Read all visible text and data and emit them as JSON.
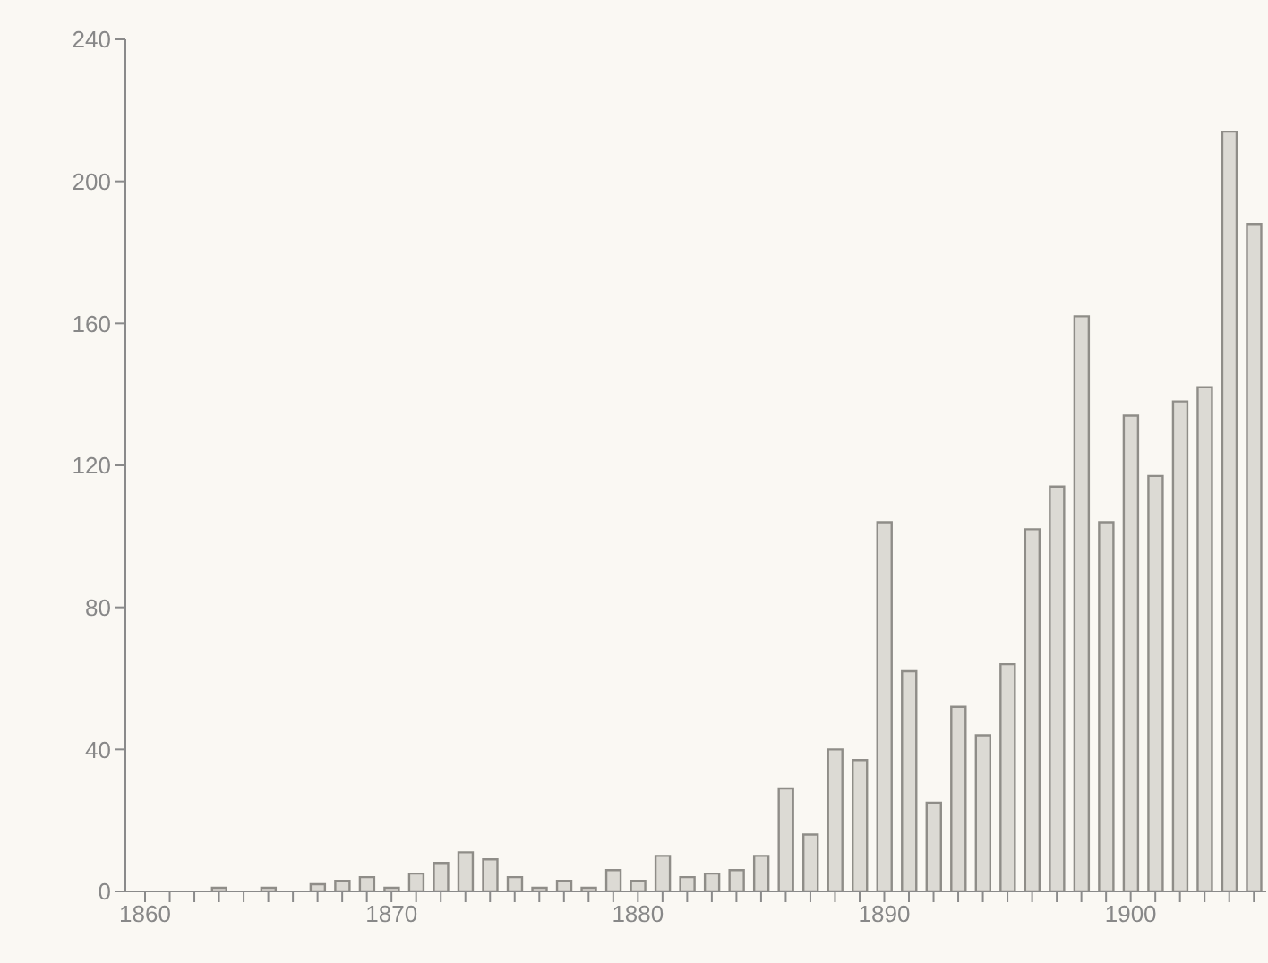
{
  "chart_data": {
    "type": "bar",
    "x": [
      1860,
      1861,
      1862,
      1863,
      1864,
      1865,
      1866,
      1867,
      1868,
      1869,
      1870,
      1871,
      1872,
      1873,
      1874,
      1875,
      1876,
      1877,
      1878,
      1879,
      1880,
      1881,
      1882,
      1883,
      1884,
      1885,
      1886,
      1887,
      1888,
      1889,
      1890,
      1891,
      1892,
      1893,
      1894,
      1895,
      1896,
      1897,
      1898,
      1899,
      1900,
      1901,
      1902,
      1903,
      1904,
      1905
    ],
    "values": [
      0,
      0,
      0,
      1,
      0,
      1,
      0,
      2,
      3,
      4,
      1,
      5,
      8,
      11,
      9,
      4,
      1,
      3,
      1,
      6,
      3,
      10,
      4,
      5,
      6,
      10,
      29,
      16,
      40,
      37,
      104,
      62,
      25,
      52,
      44,
      64,
      102,
      114,
      162,
      104,
      134,
      117,
      138,
      142,
      214,
      188
    ],
    "color": "#dcdad4",
    "xlim": [
      1859.2,
      1905.5
    ],
    "xticks": [
      1860,
      {
        "value": 1861,
        "label": null
      },
      {
        "value": 1862,
        "label": null
      },
      {
        "value": 1863,
        "label": null
      },
      {
        "value": 1864,
        "label": null
      },
      {
        "value": 1865,
        "label": null
      },
      {
        "value": 1866,
        "label": null
      },
      {
        "value": 1867,
        "label": null
      },
      {
        "value": 1868,
        "label": null
      },
      {
        "value": 1869,
        "label": null
      },
      1870,
      {
        "value": 1871,
        "label": null
      },
      {
        "value": 1872,
        "label": null
      },
      {
        "value": 1873,
        "label": null
      },
      {
        "value": 1874,
        "label": null
      },
      {
        "value": 1875,
        "label": null
      },
      {
        "value": 1876,
        "label": null
      },
      {
        "value": 1877,
        "label": null
      },
      {
        "value": 1878,
        "label": null
      },
      {
        "value": 1879,
        "label": null
      },
      1880,
      {
        "value": 1881,
        "label": null
      },
      {
        "value": 1882,
        "label": null
      },
      {
        "value": 1883,
        "label": null
      },
      {
        "value": 1884,
        "label": null
      },
      {
        "value": 1885,
        "label": null
      },
      {
        "value": 1886,
        "label": null
      },
      {
        "value": 1887,
        "label": null
      },
      {
        "value": 1888,
        "label": null
      },
      {
        "value": 1889,
        "label": null
      },
      1890,
      {
        "value": 1891,
        "label": null
      },
      {
        "value": 1892,
        "label": null
      },
      {
        "value": 1893,
        "label": null
      },
      {
        "value": 1894,
        "label": null
      },
      {
        "value": 1895,
        "label": null
      },
      {
        "value": 1896,
        "label": null
      },
      {
        "value": 1897,
        "label": null
      },
      {
        "value": 1898,
        "label": null
      },
      {
        "value": 1899,
        "label": null
      },
      1900,
      {
        "value": 1901,
        "label": null
      },
      {
        "value": 1902,
        "label": null
      },
      {
        "value": 1903,
        "label": null
      },
      {
        "value": 1904,
        "label": null
      },
      {
        "value": 1905,
        "label": null
      }
    ],
    "ylim": [
      0,
      240
    ],
    "yticks": [
      0,
      40,
      80,
      120,
      160,
      200,
      240
    ],
    "grid": false
  }
}
